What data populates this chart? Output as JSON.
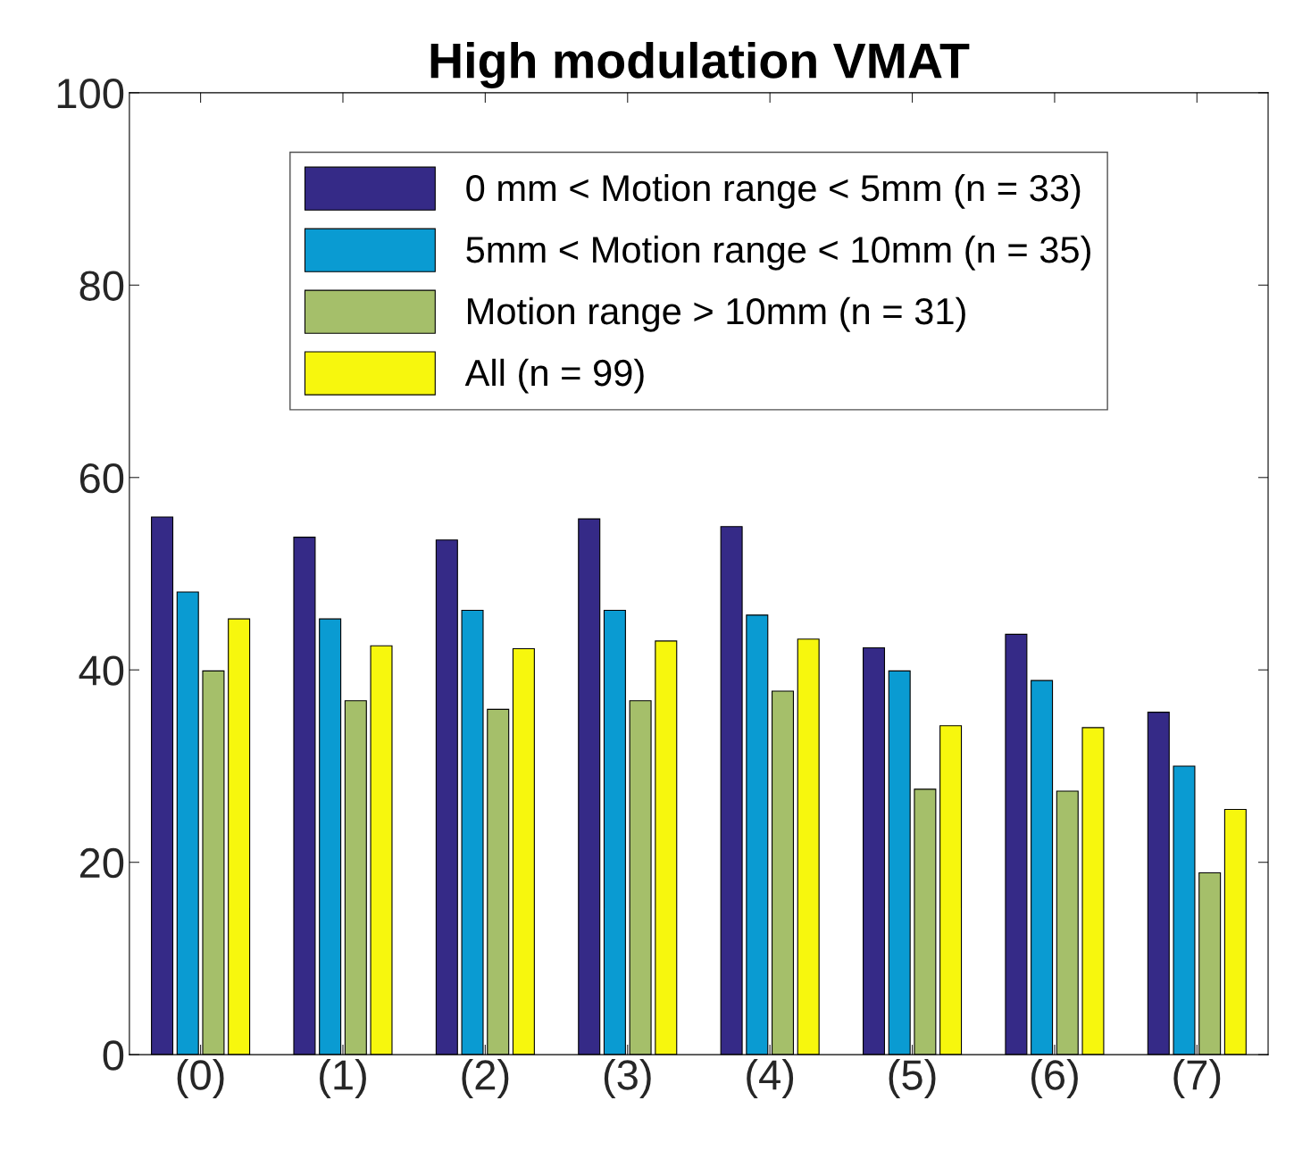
{
  "chart_data": {
    "type": "bar",
    "title": "High modulation VMAT",
    "categories": [
      "(0)",
      "(1)",
      "(2)",
      "(3)",
      "(4)",
      "(5)",
      "(6)",
      "(7)"
    ],
    "series": [
      {
        "name": "0 mm < Motion range < 5mm (n = 33)",
        "color": "#352a87",
        "values": [
          55.9,
          53.8,
          53.5,
          55.7,
          54.9,
          42.3,
          43.7,
          35.6
        ]
      },
      {
        "name": "5mm < Motion range < 10mm (n = 35)",
        "color": "#0a9bd2",
        "values": [
          48.1,
          45.3,
          46.2,
          46.2,
          45.7,
          39.9,
          38.9,
          30.0
        ]
      },
      {
        "name": "Motion range > 10mm (n = 31)",
        "color": "#a5bf6a",
        "values": [
          39.9,
          36.8,
          35.9,
          36.8,
          37.8,
          27.6,
          27.4,
          18.9
        ]
      },
      {
        "name": "All (n = 99)",
        "color": "#f7f70d",
        "values": [
          45.3,
          42.5,
          42.2,
          43.0,
          43.2,
          34.2,
          34.0,
          25.5
        ]
      }
    ],
    "ylim": [
      0,
      100
    ],
    "yticks": [
      0,
      20,
      40,
      60,
      80,
      100
    ],
    "grid": false,
    "legend": "top"
  }
}
